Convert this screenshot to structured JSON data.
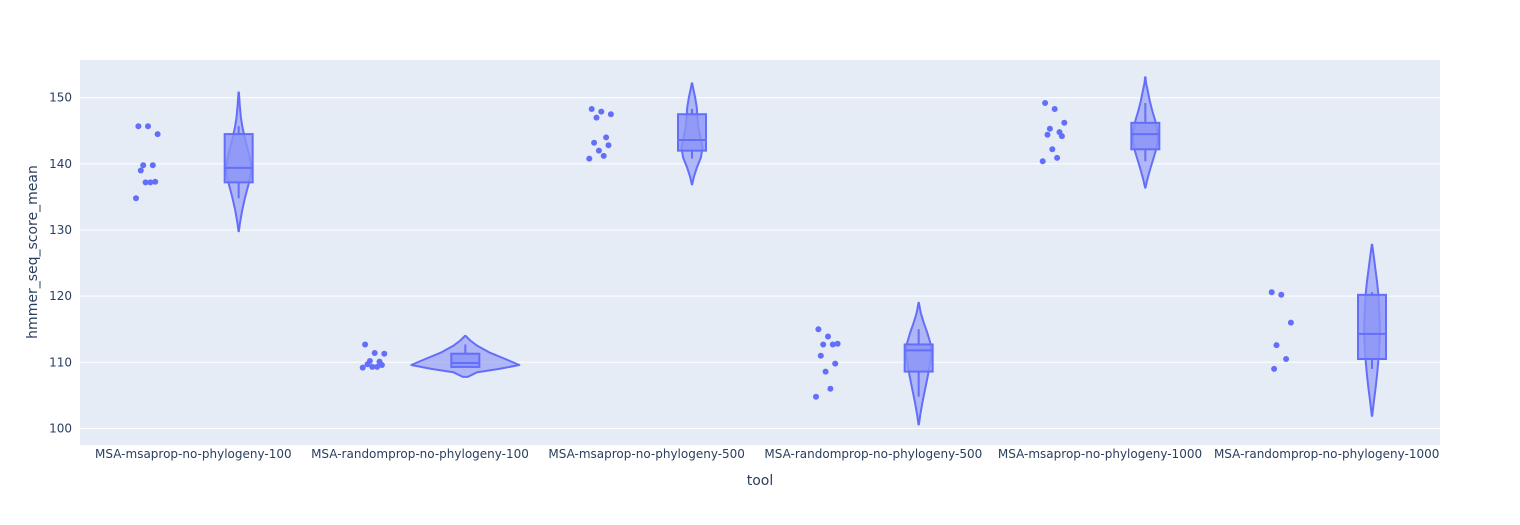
{
  "chart_data": {
    "type": "violin",
    "xlabel": "tool",
    "ylabel": "hmmer_seq_score_mean",
    "ylim": [
      97.5,
      155.7
    ],
    "yticks": [
      100,
      110,
      120,
      130,
      140,
      150
    ],
    "grid": true,
    "legend": "none",
    "colors": {
      "plot_bg": "#e5ecf6",
      "grid": "#ffffff",
      "marker": "#636efa",
      "fill": "#8b93f7",
      "line": "#636efa",
      "text": "#2a3f5f"
    },
    "categories": [
      "MSA-msaprop-no-phylogeny-100",
      "MSA-randomprop-no-phylogeny-100",
      "MSA-msaprop-no-phylogeny-500",
      "MSA-randomprop-no-phylogeny-500",
      "MSA-msaprop-no-phylogeny-1000",
      "MSA-randomprop-no-phylogeny-1000"
    ],
    "series": [
      {
        "points": [
          145.7,
          145.7,
          144.5,
          139.8,
          139.8,
          139.0,
          137.3,
          137.2,
          137.2,
          134.8
        ],
        "box": {
          "min": 134.8,
          "q1": 137.2,
          "median": 139.4,
          "q3": 144.5,
          "max": 145.7
        },
        "kde": {
          "y": [
            129.8,
            131,
            133,
            135,
            137,
            138.2,
            139.5,
            141,
            142.5,
            144,
            145.5,
            147,
            149,
            150.8
          ],
          "w": [
            0.2,
            1.2,
            3.5,
            6.5,
            10,
            11.8,
            12.5,
            11,
            8.5,
            6,
            3.8,
            2.2,
            1.0,
            0.2
          ]
        }
      },
      {
        "points": [
          112.7,
          111.4,
          111.3,
          110.2,
          110.1,
          109.7,
          109.6,
          109.3,
          109.3,
          109.2
        ],
        "box": {
          "min": 109.2,
          "q1": 109.3,
          "median": 109.9,
          "q3": 111.3,
          "max": 112.7
        },
        "kde": {
          "y": [
            107.8,
            108.5,
            109,
            109.6,
            110.5,
            111.5,
            112.5,
            113.3,
            114
          ],
          "w": [
            2.5,
            12,
            34,
            54,
            40,
            24,
            12,
            5,
            0.3
          ]
        }
      },
      {
        "points": [
          148.3,
          147.9,
          147.5,
          147.0,
          144.0,
          143.2,
          142.8,
          142.0,
          141.2,
          140.8
        ],
        "box": {
          "min": 140.8,
          "q1": 142.0,
          "median": 143.6,
          "q3": 147.5,
          "max": 148.3
        },
        "kde": {
          "y": [
            136.9,
            138,
            139.5,
            141,
            142.5,
            144,
            145.5,
            147,
            148.5,
            150,
            151.2,
            152.2
          ],
          "w": [
            0.2,
            1.8,
            5,
            9,
            10.5,
            8.5,
            6.5,
            5.5,
            4.8,
            3.2,
            1.5,
            0.2
          ]
        }
      },
      {
        "points": [
          115.0,
          113.9,
          112.8,
          112.7,
          112.7,
          111.0,
          109.8,
          108.6,
          106.0,
          104.8
        ],
        "box": {
          "min": 104.8,
          "q1": 108.6,
          "median": 111.8,
          "q3": 112.7,
          "max": 115.0
        },
        "kde": {
          "y": [
            100.6,
            102,
            104,
            106,
            108,
            110,
            111.5,
            113,
            114.5,
            116,
            117.5,
            119
          ],
          "w": [
            0.2,
            1.5,
            3.8,
            6.5,
            9.2,
            11.5,
            12.8,
            11.5,
            8.5,
            5,
            2,
            0.2
          ]
        }
      },
      {
        "points": [
          149.2,
          148.3,
          146.2,
          145.3,
          144.8,
          144.4,
          144.2,
          142.2,
          140.9,
          140.4
        ],
        "box": {
          "min": 140.4,
          "q1": 142.2,
          "median": 144.5,
          "q3": 146.2,
          "max": 149.2
        },
        "kde": {
          "y": [
            136.4,
            137.5,
            139,
            140.5,
            142,
            143.5,
            145,
            146.5,
            148,
            149.5,
            151,
            152.2,
            153.1
          ],
          "w": [
            0.2,
            1.8,
            4.5,
            7.5,
            10.5,
            12.5,
            12,
            10,
            7,
            4.5,
            2.5,
            0.8,
            0.2
          ]
        }
      },
      {
        "points": [
          120.6,
          120.2,
          116.0,
          112.6,
          110.5,
          109.0
        ],
        "box": {
          "min": 109.0,
          "q1": 110.5,
          "median": 114.3,
          "q3": 120.2,
          "max": 120.6
        },
        "kde": {
          "y": [
            101.9,
            104,
            106,
            108,
            110,
            112,
            114,
            116,
            118,
            120,
            122,
            124,
            126,
            127.8
          ],
          "w": [
            0.2,
            1.8,
            3.5,
            5,
            6.2,
            7.2,
            7.7,
            7.7,
            7.2,
            6.5,
            5.2,
            3.5,
            1.8,
            0.2
          ]
        }
      }
    ]
  }
}
